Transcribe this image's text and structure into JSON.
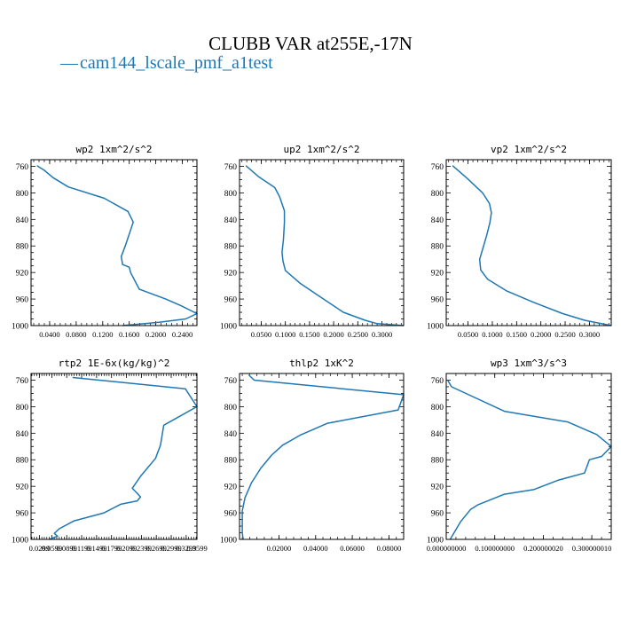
{
  "title": "CLUBB VAR at255E,-17N",
  "legend": {
    "label": "cam144_lscale_pmf_a1test",
    "marker": "—",
    "color": "#1f77b4"
  },
  "chart_data": [
    {
      "type": "line",
      "title": "wp2  1xm^2/s^2",
      "ylim": [
        1000,
        750
      ],
      "yticks": [
        760,
        800,
        840,
        880,
        920,
        960,
        1000
      ],
      "xlim": [
        0.012,
        0.262
      ],
      "xticks": [
        0.04,
        0.08,
        0.12,
        0.16,
        0.2,
        0.24
      ],
      "xtick_labels": [
        "0.0400",
        "0.0800",
        "0.1200",
        "0.1600",
        "0.2000",
        "0.2400"
      ],
      "series": [
        {
          "color": "#1f77b4",
          "x": [
            0.021,
            0.032,
            0.045,
            0.068,
            0.122,
            0.158,
            0.166,
            0.16,
            0.154,
            0.148,
            0.15,
            0.16,
            0.162,
            0.175,
            0.215,
            0.238,
            0.262,
            0.245,
            0.205,
            0.15
          ],
          "y": [
            759,
            766,
            777,
            791,
            808,
            828,
            844,
            862,
            880,
            896,
            908,
            912,
            920,
            945,
            960,
            970,
            982,
            990,
            995,
            1000
          ]
        }
      ]
    },
    {
      "type": "line",
      "title": "up2  1xm^2/s^2",
      "ylim": [
        1000,
        750
      ],
      "yticks": [
        760,
        800,
        840,
        880,
        920,
        960,
        1000
      ],
      "xlim": [
        0.005,
        0.345
      ],
      "xticks": [
        0.05,
        0.1,
        0.15,
        0.2,
        0.25,
        0.3
      ],
      "xtick_labels": [
        "0.0500",
        "0.1000",
        "0.1500",
        "0.2000",
        "0.2500",
        "0.3000"
      ],
      "series": [
        {
          "color": "#1f77b4",
          "x": [
            0.018,
            0.045,
            0.078,
            0.088,
            0.098,
            0.098,
            0.096,
            0.093,
            0.095,
            0.1,
            0.13,
            0.175,
            0.22,
            0.265,
            0.29,
            0.345
          ],
          "y": [
            759,
            776,
            792,
            806,
            827,
            845,
            870,
            890,
            903,
            917,
            936,
            958,
            980,
            992,
            997,
            1000
          ]
        }
      ]
    },
    {
      "type": "line",
      "title": "vp2  1xm^2/s^2",
      "ylim": [
        1000,
        750
      ],
      "yticks": [
        760,
        800,
        840,
        880,
        920,
        960,
        1000
      ],
      "xlim": [
        0.005,
        0.345
      ],
      "xticks": [
        0.05,
        0.1,
        0.15,
        0.2,
        0.25,
        0.3
      ],
      "xtick_labels": [
        "0.0500",
        "0.1000",
        "0.1500",
        "0.2000",
        "0.2500",
        "0.3000"
      ],
      "series": [
        {
          "color": "#1f77b4",
          "x": [
            0.018,
            0.048,
            0.08,
            0.094,
            0.098,
            0.095,
            0.088,
            0.08,
            0.074,
            0.076,
            0.09,
            0.13,
            0.185,
            0.245,
            0.29,
            0.345
          ],
          "y": [
            759,
            778,
            800,
            816,
            830,
            845,
            865,
            885,
            900,
            916,
            930,
            948,
            965,
            982,
            992,
            1000
          ]
        }
      ]
    },
    {
      "type": "line",
      "title": "rtp2  1E-6x(kg/kg)^2",
      "ylim": [
        1000,
        750
      ],
      "yticks": [
        760,
        800,
        840,
        880,
        920,
        960,
        1000
      ],
      "xlim": [
        0.0,
        1.0
      ],
      "xticks": [
        0.05,
        0.125,
        0.215,
        0.305,
        0.395,
        0.485,
        0.575,
        0.665,
        0.755,
        0.845,
        0.935,
        1.0
      ],
      "xtick_labels": [
        "0.0299",
        "0.0599",
        "0.0899",
        "0.1199",
        "0.1499",
        "0.1799",
        "0.2099",
        "0.2399",
        "0.2699",
        "0.2999",
        "0.3299",
        "0.3599"
      ],
      "series": [
        {
          "color": "#1f77b4",
          "x": [
            0.25,
            0.93,
            1.0,
            0.8,
            0.78,
            0.75,
            0.66,
            0.61,
            0.63,
            0.66,
            0.64,
            0.54,
            0.44,
            0.26,
            0.17,
            0.14,
            0.16,
            0.11
          ],
          "y": [
            756,
            773,
            800,
            828,
            858,
            878,
            905,
            923,
            928,
            936,
            942,
            947,
            960,
            972,
            984,
            991,
            995,
            1000
          ]
        }
      ]
    },
    {
      "type": "line",
      "title": "thlp2  1xK^2",
      "ylim": [
        1000,
        750
      ],
      "yticks": [
        760,
        800,
        840,
        880,
        920,
        960,
        1000
      ],
      "xlim": [
        -0.0015,
        0.088
      ],
      "xticks": [
        0.02,
        0.04,
        0.06,
        0.08
      ],
      "xtick_labels": [
        "0.02000",
        "0.04000",
        "0.06000",
        "0.08000"
      ],
      "series": [
        {
          "color": "#1f77b4",
          "x": [
            0.0035,
            0.0065,
            0.088,
            0.085,
            0.0465,
            0.0315,
            0.022,
            0.016,
            0.01,
            0.005,
            0.0015,
            0.0,
            0.0,
            0.0,
            0.0005
          ],
          "y": [
            752,
            760,
            782,
            805,
            825,
            843,
            858,
            873,
            893,
            915,
            937,
            957,
            970,
            990,
            1000
          ]
        }
      ]
    },
    {
      "type": "line",
      "title": "wp3  1xm^3/s^3",
      "ylim": [
        1000,
        750
      ],
      "yticks": [
        760,
        800,
        840,
        880,
        920,
        960,
        1000
      ],
      "xlim": [
        0.0,
        0.34
      ],
      "xticks": [
        0.0,
        0.1,
        0.2,
        0.3
      ],
      "xtick_labels": [
        "0.000000000",
        "0.100000000",
        "0.200000020",
        "0.300000010"
      ],
      "series": [
        {
          "color": "#1f77b4",
          "x": [
            0.003,
            0.011,
            0.12,
            0.25,
            0.31,
            0.34,
            0.32,
            0.295,
            0.285,
            0.23,
            0.18,
            0.12,
            0.065,
            0.05,
            0.03,
            0.008
          ],
          "y": [
            760,
            770,
            807,
            823,
            842,
            860,
            875,
            880,
            900,
            911,
            925,
            932,
            948,
            955,
            973,
            1000
          ]
        }
      ]
    }
  ]
}
